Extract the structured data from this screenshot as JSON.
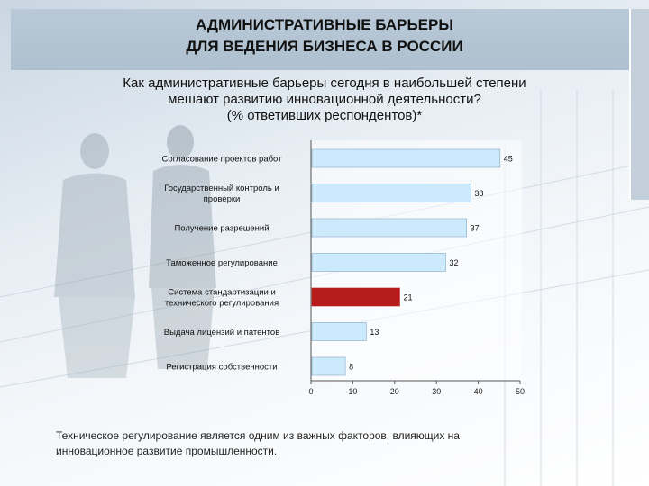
{
  "header": {
    "title_line1": "АДМИНИСТРАТИВНЫЕ БАРЬЕРЫ",
    "title_line2": "ДЛЯ ВЕДЕНИЯ БИЗНЕСА В РОССИИ"
  },
  "question": {
    "line1": "Как административные барьеры сегодня в наибольшей степени",
    "line2": "мешают развитию инновационной деятельности?",
    "line3": "(% ответивших респондентов)*"
  },
  "chart_data": {
    "type": "bar",
    "orientation": "horizontal",
    "categories": [
      [
        "Согласование проектов работ"
      ],
      [
        "Государственный контроль и",
        "проверки"
      ],
      [
        "Получение разрешений"
      ],
      [
        "Таможенное регулирование"
      ],
      [
        "Система стандартизации и",
        "технического регулирования"
      ],
      [
        "Выдача лицензий и патентов"
      ],
      [
        "Регистрация собственности"
      ]
    ],
    "values": [
      45,
      38,
      37,
      32,
      21,
      13,
      8
    ],
    "xlim": [
      0,
      50
    ],
    "xticks": [
      0,
      10,
      20,
      30,
      40,
      50
    ],
    "grid": false,
    "colors": {
      "default": "#cdeafc",
      "highlight": "#b71c1c",
      "border": "#7fa9c8"
    },
    "highlight_index": 4
  },
  "footnote": {
    "line1": "Техническое регулирование является одним из важных факторов, влияющих на",
    "line2": "инновационное развитие промышленности."
  }
}
